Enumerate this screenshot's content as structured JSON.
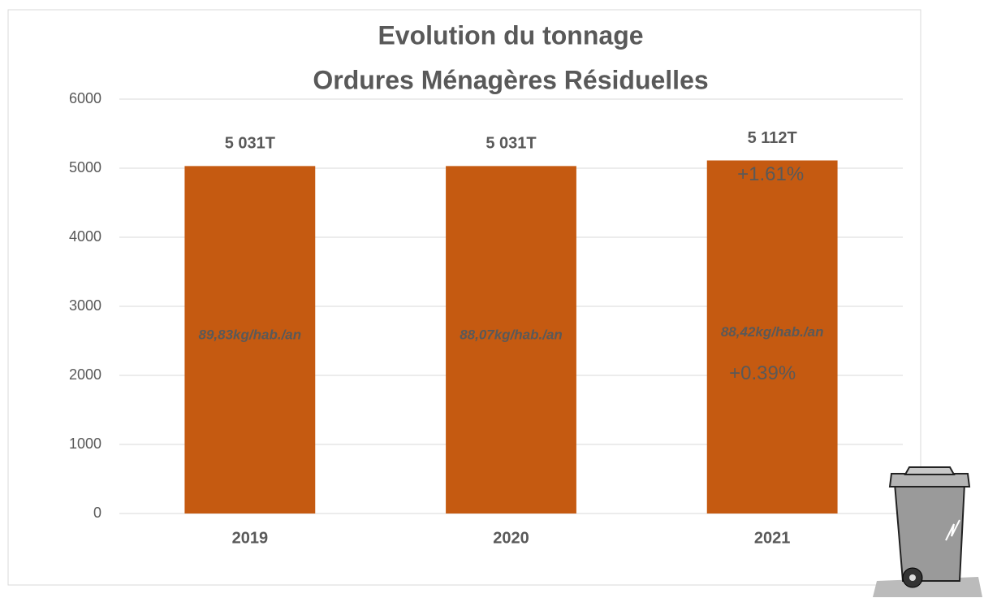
{
  "chart_data": {
    "type": "bar",
    "title": [
      "Evolution du tonnage",
      "Ordures Ménagères Résiduelles"
    ],
    "categories": [
      "2019",
      "2020",
      "2021"
    ],
    "values": [
      5031,
      5031,
      5112
    ],
    "value_labels": [
      "5 031T",
      "5 031T",
      "5 112T"
    ],
    "bar_annotations": [
      "89,83kg/hab./an",
      "88,07kg/hab./an",
      "88,42kg/hab./an"
    ],
    "change_labels": [
      "+1.61%",
      "+0.39%"
    ],
    "color": "#c55a11",
    "ylim": [
      0,
      6000
    ],
    "yticks": [
      0,
      1000,
      2000,
      3000,
      4000,
      5000,
      6000
    ],
    "grid": true
  }
}
